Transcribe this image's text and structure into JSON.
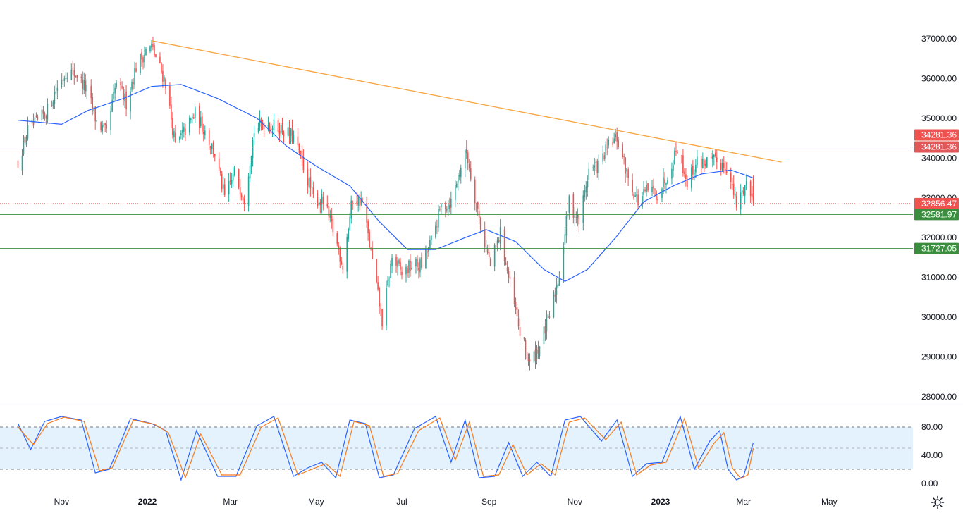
{
  "colors": {
    "up": "#26a69a",
    "down": "#ef5350",
    "ma": "#2962ff",
    "trend": "#f7a541",
    "resistance": "#e05858",
    "support": "#3b8d3f",
    "stoch_k": "#2962ff",
    "stoch_d": "#f57c20",
    "band": "#e3f2fd"
  },
  "icons": {
    "settings": "gear-icon"
  },
  "chart_data": [
    {
      "type": "candlestick",
      "title": "",
      "xlabel": "",
      "ylabel": "",
      "ylim": [
        28000,
        37300
      ],
      "y_ticks": [
        "37000.00",
        "36000.00",
        "35000.00",
        "34000.00",
        "33000.00",
        "32000.00",
        "31000.00",
        "30000.00",
        "29000.00",
        "28000.00"
      ],
      "x_ticks": [
        {
          "label": "Nov",
          "date": "2021-11-01"
        },
        {
          "label": "2022",
          "date": "2022-01-01",
          "bold": true
        },
        {
          "label": "Mar",
          "date": "2022-03-01"
        },
        {
          "label": "May",
          "date": "2022-05-01"
        },
        {
          "label": "Jul",
          "date": "2022-07-01"
        },
        {
          "label": "Sep",
          "date": "2022-09-01"
        },
        {
          "label": "Nov",
          "date": "2022-11-01"
        },
        {
          "label": "2023",
          "date": "2023-01-01",
          "bold": true
        },
        {
          "label": "Mar",
          "date": "2023-03-01"
        },
        {
          "label": "May",
          "date": "2023-05-01"
        }
      ],
      "close_series": [
        [
          "2021-10-01",
          33900
        ],
        [
          "2021-10-08",
          34700
        ],
        [
          "2021-10-15",
          34900
        ],
        [
          "2021-10-22",
          35200
        ],
        [
          "2021-10-29",
          35800
        ],
        [
          "2021-11-05",
          36200
        ],
        [
          "2021-11-12",
          36100
        ],
        [
          "2021-11-19",
          35700
        ],
        [
          "2021-11-26",
          34900
        ],
        [
          "2021-12-03",
          34600
        ],
        [
          "2021-12-10",
          35900
        ],
        [
          "2021-12-17",
          35400
        ],
        [
          "2021-12-24",
          36300
        ],
        [
          "2021-12-31",
          36700
        ],
        [
          "2022-01-04",
          36800
        ],
        [
          "2022-01-14",
          35900
        ],
        [
          "2022-01-21",
          34300
        ],
        [
          "2022-01-28",
          34700
        ],
        [
          "2022-02-04",
          35100
        ],
        [
          "2022-02-11",
          34700
        ],
        [
          "2022-02-18",
          34100
        ],
        [
          "2022-02-25",
          33000
        ],
        [
          "2022-03-04",
          33600
        ],
        [
          "2022-03-11",
          33000
        ],
        [
          "2022-03-18",
          34700
        ],
        [
          "2022-03-25",
          34900
        ],
        [
          "2022-04-01",
          34800
        ],
        [
          "2022-04-08",
          34700
        ],
        [
          "2022-04-15",
          34500
        ],
        [
          "2022-04-22",
          33800
        ],
        [
          "2022-04-29",
          33000
        ],
        [
          "2022-05-06",
          32900
        ],
        [
          "2022-05-13",
          32200
        ],
        [
          "2022-05-20",
          31300
        ],
        [
          "2022-05-27",
          33000
        ],
        [
          "2022-06-03",
          32900
        ],
        [
          "2022-06-10",
          31400
        ],
        [
          "2022-06-17",
          29900
        ],
        [
          "2022-06-24",
          31500
        ],
        [
          "2022-07-01",
          31100
        ],
        [
          "2022-07-08",
          31300
        ],
        [
          "2022-07-15",
          31300
        ],
        [
          "2022-07-22",
          31900
        ],
        [
          "2022-07-29",
          32800
        ],
        [
          "2022-08-05",
          32900
        ],
        [
          "2022-08-12",
          33800
        ],
        [
          "2022-08-16",
          34150
        ],
        [
          "2022-08-26",
          32300
        ],
        [
          "2022-09-02",
          31300
        ],
        [
          "2022-09-09",
          32100
        ],
        [
          "2022-09-16",
          30800
        ],
        [
          "2022-09-23",
          29600
        ],
        [
          "2022-09-30",
          28800
        ],
        [
          "2022-10-07",
          29300
        ],
        [
          "2022-10-14",
          30000
        ],
        [
          "2022-10-21",
          31100
        ],
        [
          "2022-10-28",
          32900
        ],
        [
          "2022-11-04",
          32400
        ],
        [
          "2022-11-11",
          33700
        ],
        [
          "2022-11-18",
          33800
        ],
        [
          "2022-11-25",
          34300
        ],
        [
          "2022-12-01",
          34500
        ],
        [
          "2022-12-09",
          33500
        ],
        [
          "2022-12-16",
          32900
        ],
        [
          "2022-12-23",
          33200
        ],
        [
          "2022-12-30",
          33100
        ],
        [
          "2023-01-06",
          33600
        ],
        [
          "2023-01-13",
          34300
        ],
        [
          "2023-01-20",
          33400
        ],
        [
          "2023-01-27",
          33900
        ],
        [
          "2023-02-03",
          33900
        ],
        [
          "2023-02-10",
          33900
        ],
        [
          "2023-02-17",
          33800
        ],
        [
          "2023-02-24",
          32800
        ],
        [
          "2023-03-03",
          33400
        ],
        [
          "2023-03-08",
          32856.47
        ]
      ],
      "moving_average": [
        [
          "2021-10-01",
          34950
        ],
        [
          "2021-11-01",
          34850
        ],
        [
          "2021-11-20",
          35200
        ],
        [
          "2021-12-15",
          35500
        ],
        [
          "2022-01-04",
          35800
        ],
        [
          "2022-01-25",
          35850
        ],
        [
          "2022-02-20",
          35500
        ],
        [
          "2022-03-20",
          35000
        ],
        [
          "2022-04-10",
          34300
        ],
        [
          "2022-05-01",
          33800
        ],
        [
          "2022-05-25",
          33300
        ],
        [
          "2022-06-15",
          32400
        ],
        [
          "2022-07-05",
          31700
        ],
        [
          "2022-07-25",
          31700
        ],
        [
          "2022-08-15",
          32000
        ],
        [
          "2022-08-30",
          32200
        ],
        [
          "2022-09-20",
          31900
        ],
        [
          "2022-10-10",
          31200
        ],
        [
          "2022-10-25",
          30900
        ],
        [
          "2022-11-10",
          31200
        ],
        [
          "2022-11-30",
          32000
        ],
        [
          "2022-12-20",
          32900
        ],
        [
          "2023-01-10",
          33300
        ],
        [
          "2023-01-30",
          33600
        ],
        [
          "2023-02-20",
          33700
        ],
        [
          "2023-03-08",
          33500
        ]
      ],
      "trendline": {
        "from": [
          "2022-01-04",
          36950
        ],
        "to": [
          "2023-03-28",
          33900
        ]
      },
      "levels": [
        {
          "name": "resistance",
          "value": 34281.36,
          "label": "34281.36"
        },
        {
          "name": "support-1",
          "value": 32581.97,
          "label": "32581.97"
        },
        {
          "name": "support-2",
          "value": 31727.05,
          "label": "31727.05"
        }
      ],
      "last_price": {
        "value": 32856.47,
        "label": "32856.47"
      },
      "extra_badge": {
        "value": 34281.36,
        "label": "34281.36"
      }
    },
    {
      "type": "line",
      "title": "",
      "ylim": [
        0,
        100
      ],
      "y_ticks": [
        "80.00",
        "40.00",
        "0.00"
      ],
      "band": [
        20,
        80
      ],
      "midline": 50,
      "series": [
        {
          "key": "k",
          "values": [
            [
              "2021-10-01",
              85
            ],
            [
              "2021-10-10",
              48
            ],
            [
              "2021-10-20",
              88
            ],
            [
              "2021-11-01",
              95
            ],
            [
              "2021-11-15",
              90
            ],
            [
              "2021-11-25",
              15
            ],
            [
              "2021-12-05",
              20
            ],
            [
              "2021-12-20",
              92
            ],
            [
              "2022-01-04",
              85
            ],
            [
              "2022-01-14",
              75
            ],
            [
              "2022-01-25",
              5
            ],
            [
              "2022-02-05",
              75
            ],
            [
              "2022-02-20",
              10
            ],
            [
              "2022-03-05",
              10
            ],
            [
              "2022-03-20",
              82
            ],
            [
              "2022-04-01",
              95
            ],
            [
              "2022-04-15",
              10
            ],
            [
              "2022-04-25",
              22
            ],
            [
              "2022-05-05",
              30
            ],
            [
              "2022-05-15",
              8
            ],
            [
              "2022-05-25",
              90
            ],
            [
              "2022-06-05",
              85
            ],
            [
              "2022-06-15",
              8
            ],
            [
              "2022-06-25",
              12
            ],
            [
              "2022-07-10",
              78
            ],
            [
              "2022-07-25",
              95
            ],
            [
              "2022-08-05",
              30
            ],
            [
              "2022-08-15",
              90
            ],
            [
              "2022-08-25",
              8
            ],
            [
              "2022-09-05",
              10
            ],
            [
              "2022-09-15",
              58
            ],
            [
              "2022-09-25",
              10
            ],
            [
              "2022-10-05",
              30
            ],
            [
              "2022-10-15",
              10
            ],
            [
              "2022-10-25",
              90
            ],
            [
              "2022-11-05",
              95
            ],
            [
              "2022-11-20",
              60
            ],
            [
              "2022-12-01",
              90
            ],
            [
              "2022-12-12",
              10
            ],
            [
              "2022-12-22",
              28
            ],
            [
              "2023-01-02",
              30
            ],
            [
              "2023-01-15",
              95
            ],
            [
              "2023-01-25",
              20
            ],
            [
              "2023-02-05",
              60
            ],
            [
              "2023-02-12",
              75
            ],
            [
              "2023-02-18",
              20
            ],
            [
              "2023-02-24",
              5
            ],
            [
              "2023-03-01",
              10
            ],
            [
              "2023-03-08",
              58
            ]
          ]
        },
        {
          "key": "d",
          "values": [
            [
              "2021-10-01",
              80
            ],
            [
              "2021-10-12",
              55
            ],
            [
              "2021-10-22",
              85
            ],
            [
              "2021-11-03",
              94
            ],
            [
              "2021-11-17",
              88
            ],
            [
              "2021-11-28",
              18
            ],
            [
              "2021-12-07",
              22
            ],
            [
              "2021-12-22",
              90
            ],
            [
              "2022-01-06",
              84
            ],
            [
              "2022-01-16",
              72
            ],
            [
              "2022-01-28",
              8
            ],
            [
              "2022-02-08",
              70
            ],
            [
              "2022-02-23",
              12
            ],
            [
              "2022-03-08",
              12
            ],
            [
              "2022-03-23",
              80
            ],
            [
              "2022-04-04",
              93
            ],
            [
              "2022-04-18",
              12
            ],
            [
              "2022-04-28",
              20
            ],
            [
              "2022-05-08",
              28
            ],
            [
              "2022-05-18",
              10
            ],
            [
              "2022-05-28",
              88
            ],
            [
              "2022-06-08",
              82
            ],
            [
              "2022-06-18",
              10
            ],
            [
              "2022-06-28",
              14
            ],
            [
              "2022-07-13",
              75
            ],
            [
              "2022-07-28",
              93
            ],
            [
              "2022-08-08",
              33
            ],
            [
              "2022-08-18",
              87
            ],
            [
              "2022-08-28",
              10
            ],
            [
              "2022-09-08",
              12
            ],
            [
              "2022-09-18",
              55
            ],
            [
              "2022-09-28",
              12
            ],
            [
              "2022-10-08",
              28
            ],
            [
              "2022-10-18",
              12
            ],
            [
              "2022-10-28",
              87
            ],
            [
              "2022-11-08",
              93
            ],
            [
              "2022-11-23",
              62
            ],
            [
              "2022-12-04",
              87
            ],
            [
              "2022-12-15",
              12
            ],
            [
              "2022-12-25",
              26
            ],
            [
              "2023-01-05",
              30
            ],
            [
              "2023-01-18",
              92
            ],
            [
              "2023-01-28",
              22
            ],
            [
              "2023-02-08",
              57
            ],
            [
              "2023-02-15",
              72
            ],
            [
              "2023-02-21",
              22
            ],
            [
              "2023-02-27",
              7
            ],
            [
              "2023-03-04",
              12
            ],
            [
              "2023-03-08",
              50
            ]
          ]
        }
      ]
    }
  ]
}
